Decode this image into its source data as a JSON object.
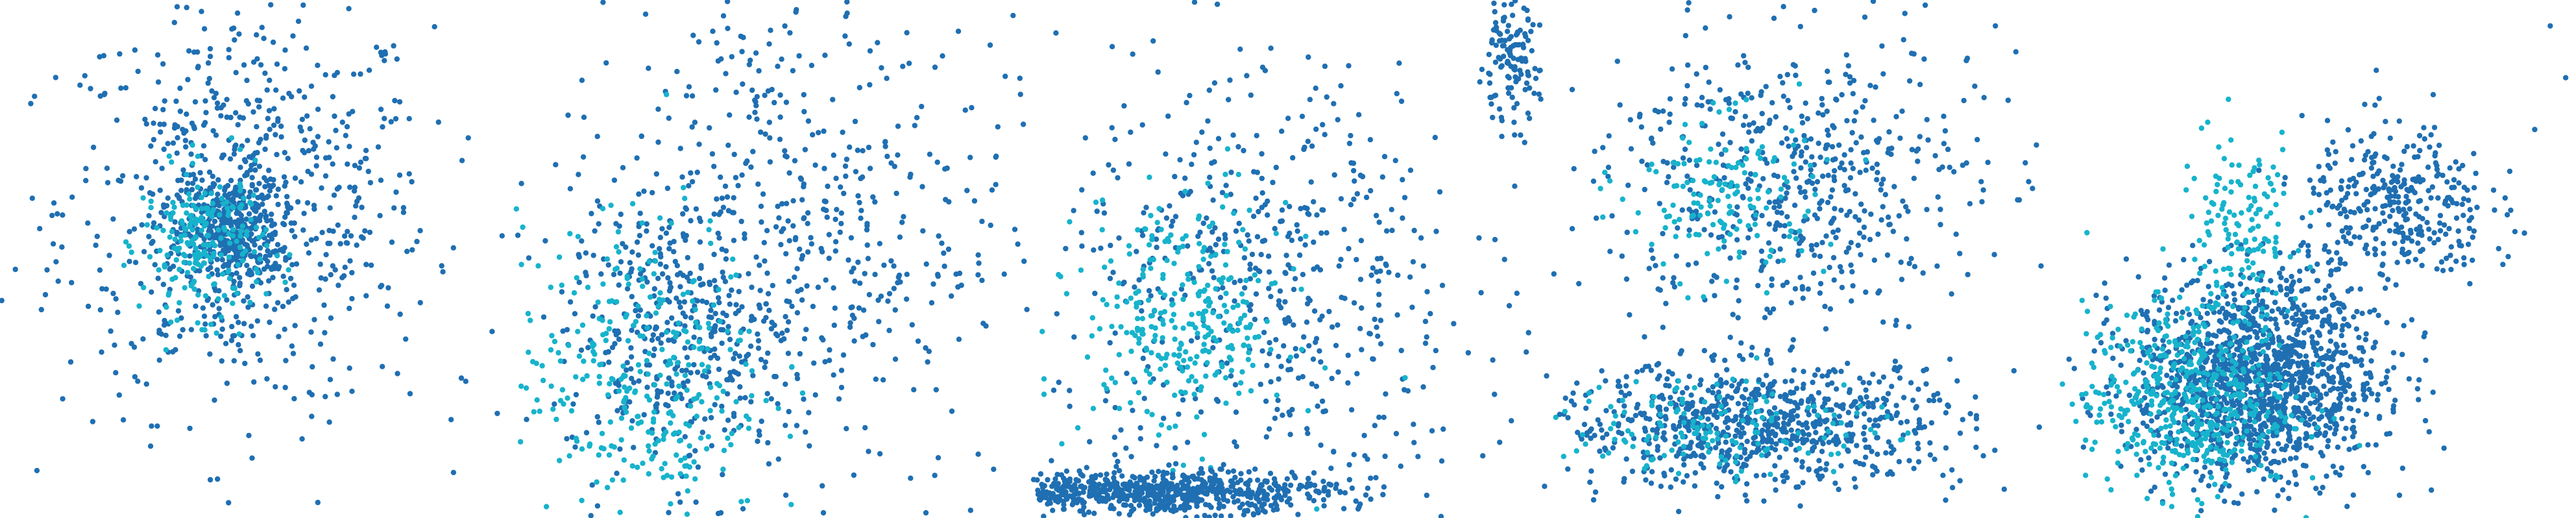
{
  "figure": {
    "panel_count": 5,
    "colors": {
      "series_a": "#1f6fb2",
      "series_b": "#17b3cc",
      "background": "#ffffff"
    }
  },
  "chart_data": [
    {
      "type": "scatter",
      "panel": 1,
      "axes_visible": false,
      "grid": false,
      "legend": "none",
      "xlim": [
        0,
        1
      ],
      "ylim": [
        0,
        1
      ],
      "clusters": [
        {
          "series": 0,
          "n": 700,
          "cx": 0.48,
          "cy": 0.6,
          "sx": 0.18,
          "sy": 0.2
        },
        {
          "series": 0,
          "n": 380,
          "cx": 0.45,
          "cy": 0.55,
          "sx": 0.05,
          "sy": 0.05
        },
        {
          "series": 1,
          "n": 220,
          "cx": 0.4,
          "cy": 0.53,
          "sx": 0.06,
          "sy": 0.07
        }
      ],
      "points": [
        [
          0.96,
          0.36
        ],
        [
          0.9,
          0.27
        ],
        [
          0.88,
          0.19
        ],
        [
          0.62,
          0.03
        ],
        [
          0.03,
          0.48
        ],
        [
          0.06,
          0.8
        ],
        [
          0.8,
          0.24
        ]
      ]
    },
    {
      "type": "scatter",
      "panel": 2,
      "axes_visible": false,
      "grid": false,
      "legend": "none",
      "xlim": [
        0,
        1
      ],
      "ylim": [
        0,
        1
      ],
      "clusters": [
        {
          "series": 0,
          "n": 600,
          "cx": 0.52,
          "cy": 0.55,
          "sx": 0.22,
          "sy": 0.25
        },
        {
          "series": 0,
          "n": 300,
          "cx": 0.3,
          "cy": 0.35,
          "sx": 0.1,
          "sy": 0.12
        },
        {
          "series": 1,
          "n": 320,
          "cx": 0.25,
          "cy": 0.28,
          "sx": 0.12,
          "sy": 0.15
        }
      ],
      "points": [
        [
          0.4,
          0.01
        ],
        [
          0.6,
          0.01
        ],
        [
          0.8,
          0.01
        ],
        [
          0.97,
          0.97
        ],
        [
          0.99,
          0.76
        ]
      ]
    },
    {
      "type": "scatter",
      "panel": 3,
      "axes_visible": false,
      "grid": false,
      "legend": "none",
      "xlim": [
        0,
        1
      ],
      "ylim": [
        0,
        1
      ],
      "clusters": [
        {
          "series": 0,
          "n": 550,
          "cx": 0.45,
          "cy": 0.45,
          "sx": 0.2,
          "sy": 0.22
        },
        {
          "series": 1,
          "n": 300,
          "cx": 0.3,
          "cy": 0.38,
          "sx": 0.1,
          "sy": 0.12
        },
        {
          "series": 0,
          "n": 700,
          "cx": 0.25,
          "cy": 0.05,
          "sx": 0.17,
          "sy": 0.02
        },
        {
          "series": 0,
          "n": 130,
          "cx": 0.93,
          "cy": 0.88,
          "sx": 0.03,
          "sy": 0.06
        }
      ],
      "points": [
        [
          0.65,
          0.12
        ],
        [
          0.72,
          0.1
        ],
        [
          0.8,
          0.11
        ],
        [
          0.88,
          0.12
        ]
      ]
    },
    {
      "type": "scatter",
      "panel": 4,
      "axes_visible": false,
      "grid": false,
      "legend": "none",
      "xlim": [
        0,
        1
      ],
      "ylim": [
        0,
        1
      ],
      "clusters": [
        {
          "series": 0,
          "n": 800,
          "cx": 0.42,
          "cy": 0.18,
          "sx": 0.2,
          "sy": 0.06
        },
        {
          "series": 1,
          "n": 150,
          "cx": 0.35,
          "cy": 0.18,
          "sx": 0.16,
          "sy": 0.05
        },
        {
          "series": 0,
          "n": 550,
          "cx": 0.48,
          "cy": 0.65,
          "sx": 0.18,
          "sy": 0.14
        },
        {
          "series": 1,
          "n": 150,
          "cx": 0.35,
          "cy": 0.62,
          "sx": 0.1,
          "sy": 0.08
        }
      ],
      "points": [
        [
          0.88,
          0.95
        ],
        [
          0.92,
          0.9
        ],
        [
          0.96,
          0.72
        ],
        [
          0.03,
          0.2
        ],
        [
          0.1,
          0.05
        ]
      ]
    },
    {
      "type": "scatter",
      "panel": 5,
      "axes_visible": false,
      "grid": false,
      "legend": "none",
      "xlim": [
        0,
        1
      ],
      "ylim": [
        0,
        1
      ],
      "clusters": [
        {
          "series": 0,
          "n": 1400,
          "cx": 0.38,
          "cy": 0.27,
          "sx": 0.12,
          "sy": 0.1
        },
        {
          "series": 1,
          "n": 500,
          "cx": 0.25,
          "cy": 0.23,
          "sx": 0.1,
          "sy": 0.09
        },
        {
          "series": 0,
          "n": 350,
          "cx": 0.65,
          "cy": 0.6,
          "sx": 0.09,
          "sy": 0.08
        },
        {
          "series": 1,
          "n": 150,
          "cx": 0.35,
          "cy": 0.55,
          "sx": 0.06,
          "sy": 0.1
        }
      ],
      "points": [
        [
          0.95,
          0.95
        ],
        [
          0.98,
          0.85
        ],
        [
          0.92,
          0.75
        ],
        [
          0.9,
          0.55
        ],
        [
          0.85,
          0.52
        ]
      ]
    }
  ]
}
